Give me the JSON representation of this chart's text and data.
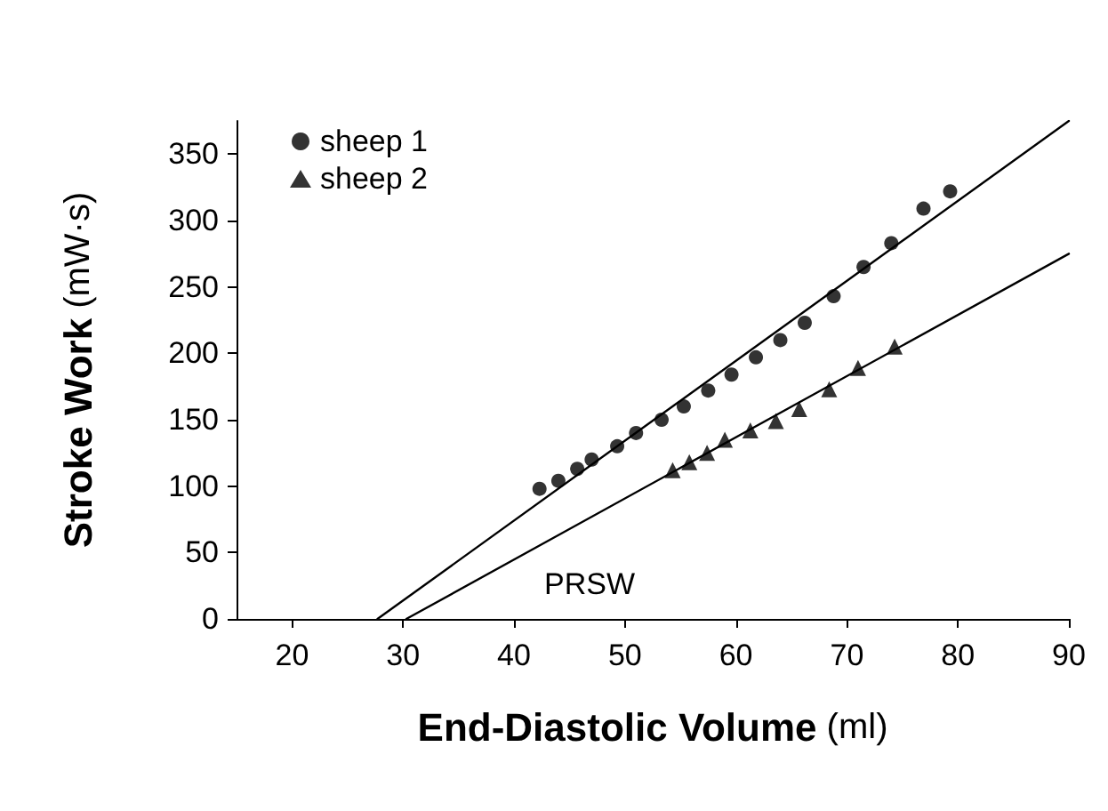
{
  "chart_data": {
    "type": "scatter",
    "xlabel": "End-Diastolic Volume (ml)",
    "ylabel": "Stroke Work (mW·s)",
    "xlim": [
      15,
      90
    ],
    "xticks": [
      20,
      30,
      40,
      50,
      60,
      70,
      80,
      90
    ],
    "ylim": [
      0,
      375
    ],
    "yticks": [
      0,
      50,
      100,
      150,
      200,
      250,
      300,
      350
    ],
    "grid": false,
    "legend": "top left",
    "annotations": [
      "PRSW"
    ],
    "series": [
      {
        "name": "sheep 1",
        "color": "#000000",
        "marker": "circle",
        "x": [
          42.3,
          44,
          45.7,
          47,
          49.3,
          51,
          53.3,
          55.3,
          57.5,
          59.6,
          61.8,
          64,
          66.2,
          68.8,
          71.5,
          74,
          76.9,
          79.3
        ],
        "values": [
          98,
          104,
          113,
          120,
          130,
          140,
          150,
          160,
          172,
          184,
          197,
          210,
          223,
          243,
          265,
          283,
          309,
          322
        ]
      },
      {
        "name": "sheep 2",
        "color": "#000000",
        "marker": "triangle",
        "x": [
          54.3,
          55.8,
          57.4,
          59,
          61.3,
          63.6,
          65.7,
          68.4,
          71,
          74.3
        ],
        "values": [
          112,
          118,
          125,
          135,
          142,
          149,
          158,
          173,
          189,
          205
        ]
      },
      {
        "type": "line",
        "color": "#000000",
        "marker": "none",
        "x": [
          27.7,
          90
        ],
        "values": [
          0,
          375
        ]
      },
      {
        "type": "line",
        "color": "#000000",
        "marker": "none",
        "x": [
          30.3,
          90
        ],
        "values": [
          0,
          275
        ]
      }
    ]
  }
}
